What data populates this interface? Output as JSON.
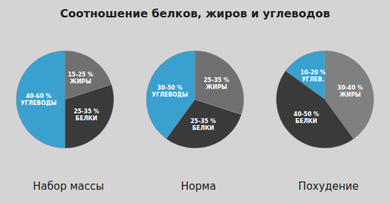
{
  "title": "Соотношение белков, жиров и углеводов",
  "chart_data": [
    {
      "type": "pie",
      "title": "Набор массы",
      "categories": [
        "40-60 %\nУГЛЕВОДЫ",
        "25-35 %\nБЕЛКИ",
        "15-25 %\nЖИРЫ"
      ],
      "values": [
        50,
        30,
        20
      ],
      "colors": [
        "#3aa0d0",
        "#3a3a3a",
        "#707070"
      ]
    },
    {
      "type": "pie",
      "title": "Норма",
      "categories": [
        "30-50 %\nУГЛЕВОДЫ",
        "25-35 %\nБЕЛКИ",
        "25-35 %\nЖИРЫ"
      ],
      "values": [
        40,
        30,
        30
      ],
      "colors": [
        "#3aa0d0",
        "#3a3a3a",
        "#707070"
      ]
    },
    {
      "type": "pie",
      "title": "Похудение",
      "categories": [
        "10-20 %\nУГЛЕВ.",
        "40-50 %\nБЕЛКИ",
        "30-40 %\nЖИРЫ"
      ],
      "values": [
        15,
        45,
        40
      ],
      "colors": [
        "#3aa0d0",
        "#3a3a3a",
        "#808080"
      ]
    }
  ]
}
